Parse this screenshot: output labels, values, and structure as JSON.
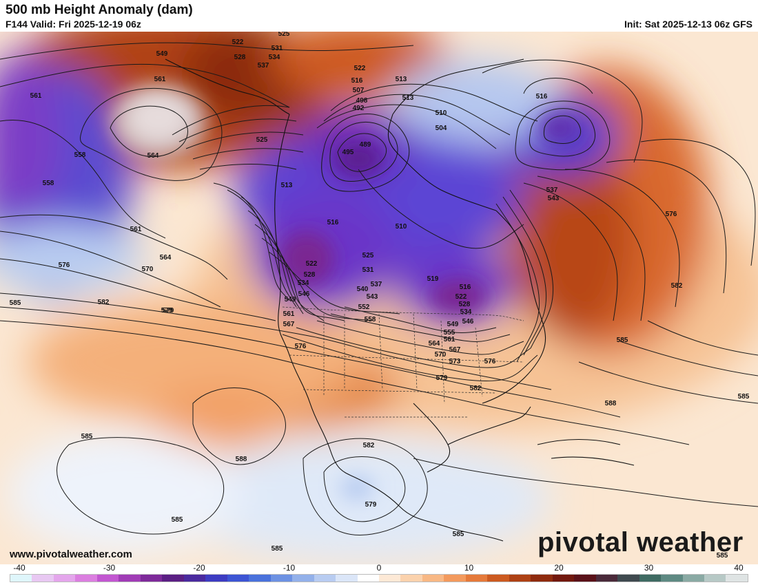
{
  "header": {
    "title": "500 mb Height Anomaly (dam)",
    "valid": "F144 Valid: Fri 2025-12-19 06z",
    "init": "Init: Sat 2025-12-13 06z GFS"
  },
  "footer": {
    "website": "www.pivotalweather.com",
    "brand": "pivotal weather"
  },
  "colorbar": {
    "ticks": [
      "-40",
      "-30",
      "-20",
      "-10",
      "0",
      "10",
      "20",
      "30",
      "40"
    ],
    "colors": [
      "#dff6fb",
      "#e8c8f2",
      "#e4a6ec",
      "#db7fe0",
      "#c257d1",
      "#a03cb6",
      "#7e2a9a",
      "#5b1f84",
      "#4a2a9e",
      "#3d3cc2",
      "#3d55d4",
      "#4a72dc",
      "#6d92e3",
      "#93b1ea",
      "#b8ccf1",
      "#dbe6f8",
      "#ffffff",
      "#fde9d6",
      "#fbd2ad",
      "#f8b885",
      "#f39a5d",
      "#e57a3a",
      "#cc5a20",
      "#ae4114",
      "#8f2b0e",
      "#72180e",
      "#5a1219",
      "#4a2a3a",
      "#3f4a4f",
      "#3f6b63",
      "#5e8a83",
      "#8aaaa4",
      "#b7c9c6",
      "#dfe4e4"
    ]
  },
  "contour_labels": [
    {
      "text": "525"
    },
    {
      "text": "522"
    },
    {
      "text": "531"
    },
    {
      "text": "528"
    },
    {
      "text": "534"
    },
    {
      "text": "537"
    },
    {
      "text": "549"
    },
    {
      "text": "561"
    },
    {
      "text": "561"
    },
    {
      "text": "558"
    },
    {
      "text": "558"
    },
    {
      "text": "564"
    },
    {
      "text": "525"
    },
    {
      "text": "522"
    },
    {
      "text": "516"
    },
    {
      "text": "507"
    },
    {
      "text": "498"
    },
    {
      "text": "492"
    },
    {
      "text": "489"
    },
    {
      "text": "495"
    },
    {
      "text": "513"
    },
    {
      "text": "513"
    },
    {
      "text": "510"
    },
    {
      "text": "504"
    },
    {
      "text": "516"
    },
    {
      "text": "513"
    },
    {
      "text": "516"
    },
    {
      "text": "510"
    },
    {
      "text": "537"
    },
    {
      "text": "543"
    },
    {
      "text": "576"
    },
    {
      "text": "561"
    },
    {
      "text": "564"
    },
    {
      "text": "570"
    },
    {
      "text": "576"
    },
    {
      "text": "585"
    },
    {
      "text": "582"
    },
    {
      "text": "579"
    },
    {
      "text": "522"
    },
    {
      "text": "528"
    },
    {
      "text": "534"
    },
    {
      "text": "525"
    },
    {
      "text": "531"
    },
    {
      "text": "537"
    },
    {
      "text": "540"
    },
    {
      "text": "543"
    },
    {
      "text": "546"
    },
    {
      "text": "549"
    },
    {
      "text": "552"
    },
    {
      "text": "558"
    },
    {
      "text": "561"
    },
    {
      "text": "567"
    },
    {
      "text": "519"
    },
    {
      "text": "516"
    },
    {
      "text": "522"
    },
    {
      "text": "528"
    },
    {
      "text": "534"
    },
    {
      "text": "546"
    },
    {
      "text": "549"
    },
    {
      "text": "555"
    },
    {
      "text": "564"
    },
    {
      "text": "561"
    },
    {
      "text": "567"
    },
    {
      "text": "570"
    },
    {
      "text": "573"
    },
    {
      "text": "576"
    },
    {
      "text": "576"
    },
    {
      "text": "579"
    },
    {
      "text": "579"
    },
    {
      "text": "582"
    },
    {
      "text": "582"
    },
    {
      "text": "585"
    },
    {
      "text": "588"
    },
    {
      "text": "585"
    },
    {
      "text": "588"
    },
    {
      "text": "585"
    },
    {
      "text": "582"
    },
    {
      "text": "579"
    },
    {
      "text": "585"
    },
    {
      "text": "585"
    },
    {
      "text": "585"
    },
    {
      "text": "585"
    }
  ]
}
